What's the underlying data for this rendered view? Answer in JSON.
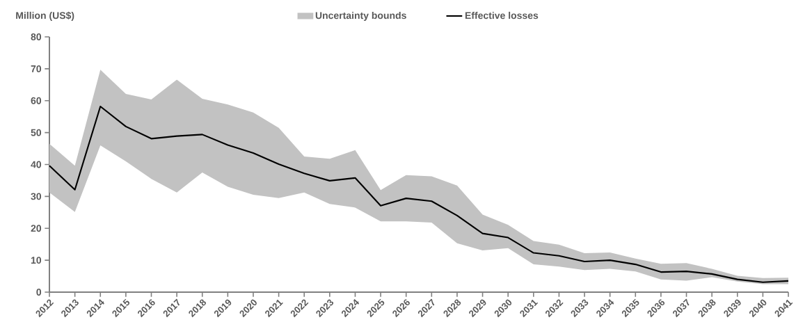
{
  "chart_data": {
    "type": "line",
    "ylabel": "Million (US$)",
    "annotations": [
      "Uncertainty bounds"
    ],
    "categories": [
      "2012",
      "2013",
      "2014",
      "2015",
      "2016",
      "2017",
      "2018",
      "2019",
      "2020",
      "2021",
      "2022",
      "2023",
      "2024",
      "2025",
      "2026",
      "2027",
      "2028",
      "2029",
      "2030",
      "2031",
      "2032",
      "2033",
      "2034",
      "2035",
      "2036",
      "2037",
      "2038",
      "2039",
      "2040",
      "2041"
    ],
    "series": [
      {
        "name": "Effective losses",
        "color": "#000000",
        "values": [
          39.6,
          32.1,
          58.2,
          51.9,
          48.1,
          48.9,
          49.4,
          46.1,
          43.6,
          40.1,
          37.2,
          34.9,
          35.8,
          27.1,
          29.4,
          28.5,
          24,
          18.4,
          17.1,
          12.3,
          11.4,
          9.6,
          10,
          8.7,
          6.3,
          6.5,
          5.7,
          4,
          3.1,
          3.5
        ],
        "upper": [
          46.5,
          39.6,
          69.7,
          62.1,
          60.4,
          66.6,
          60.6,
          58.8,
          56.3,
          51.5,
          42.5,
          41.8,
          44.5,
          32,
          36.7,
          36.3,
          33.4,
          24.3,
          21.1,
          16,
          14.9,
          12.2,
          12.4,
          10.5,
          8.9,
          9.1,
          7.3,
          5.1,
          4.4,
          4.5
        ],
        "lower": [
          31.2,
          25.1,
          46,
          41,
          35.5,
          31.2,
          37.5,
          33,
          30.5,
          29.5,
          31.2,
          27.6,
          26.5,
          22.2,
          22.2,
          21.8,
          15.3,
          13.1,
          13.8,
          8.7,
          8,
          6.9,
          7.3,
          6.5,
          4,
          3.6,
          4.7,
          3.3,
          2.5,
          2.5
        ]
      }
    ],
    "ylim": [
      0,
      80
    ],
    "yticks": [
      0,
      10,
      20,
      30,
      40,
      50,
      60,
      70,
      80
    ],
    "grid": false,
    "legend": "top"
  }
}
